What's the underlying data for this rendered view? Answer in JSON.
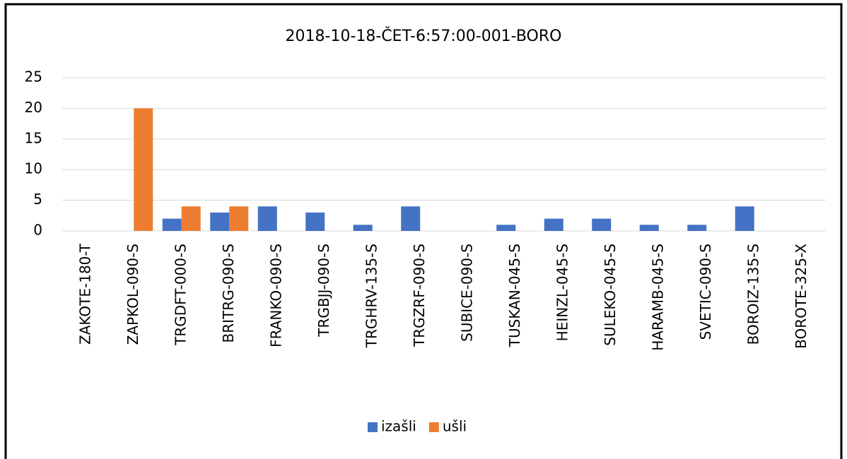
{
  "chart_data": {
    "type": "bar",
    "title": "2018-10-18-ČET-6:57:00-001-BORO",
    "categories": [
      "ZAKOTE-180-T",
      "ZAPKOL-090-S",
      "TRGDFT-000-S",
      "BRITRG-090-S",
      "FRANKO-090-S",
      "TRGBJJ-090-S",
      "TRGHRV-135-S",
      "TRGZRF-090-S",
      "SUBICE-090-S",
      "TUSKAN-045-S",
      "HEINZL-045-S",
      "SULEKO-045-S",
      "HARAMB-045-S",
      "SVETIC-090-S",
      "BOROIZ-135-S",
      "BOROTE-325-X"
    ],
    "series": [
      {
        "name": "izašli",
        "color": "#4472c4",
        "values": [
          0,
          0,
          2,
          3,
          4,
          3,
          1,
          4,
          0,
          1,
          2,
          2,
          1,
          1,
          4,
          0
        ]
      },
      {
        "name": "ušli",
        "color": "#ed7d31",
        "values": [
          0,
          20,
          4,
          4,
          0,
          0,
          0,
          0,
          0,
          0,
          0,
          0,
          0,
          0,
          0,
          0
        ]
      }
    ],
    "ylim": [
      0,
      25
    ],
    "yticks": [
      0,
      5,
      10,
      15,
      20,
      25
    ],
    "grid": true,
    "legend": "bottom"
  }
}
